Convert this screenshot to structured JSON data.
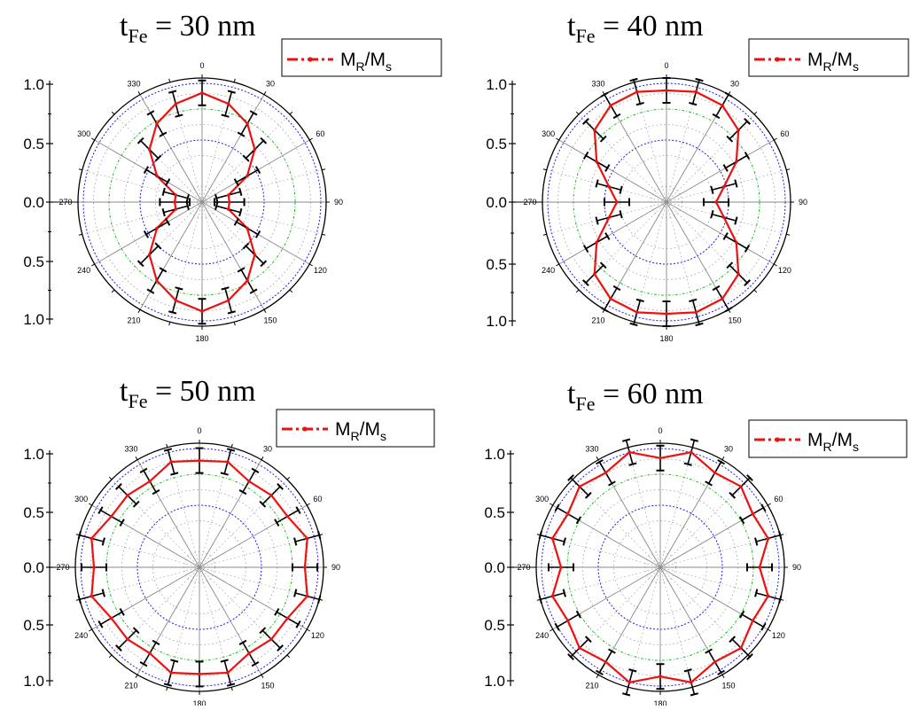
{
  "colors": {
    "series_line": "#ee1111",
    "error_bar": "#000000",
    "grid_major_outer": "#1a1aee",
    "grid_major_mid": "#22bb22",
    "grid_major_inner": "#1a1aee",
    "grid_minor": "#9a9a9a",
    "spoke": "#8a8a8a",
    "frame": "#000000"
  },
  "chart_data": [
    {
      "type": "polar-line",
      "title": {
        "prefix": "t",
        "subscript": "Fe",
        "suffix": " = 30 nm"
      },
      "legend": {
        "main": "M",
        "sub1": "R",
        "slash": "/M",
        "sub2": "s"
      },
      "legend_placement": "top-right",
      "radial_axis": {
        "range": [
          0,
          1.0
        ],
        "tick_labels": [
          "1.0",
          "0.5",
          "0.0",
          "0.5",
          "1.0"
        ]
      },
      "angle_labels": [
        "0",
        "30",
        "60",
        "90",
        "120",
        "150",
        "180",
        "210",
        "240",
        "270",
        "300",
        "330"
      ],
      "grid": true,
      "series": [
        {
          "angles": [
            0,
            15,
            30,
            45,
            60,
            75,
            90,
            105,
            120,
            135,
            150,
            165,
            180,
            195,
            210,
            225,
            240,
            255,
            270,
            285,
            300,
            315,
            330,
            345
          ],
          "values": [
            0.88,
            0.82,
            0.73,
            0.6,
            0.42,
            0.22,
            0.22,
            0.22,
            0.42,
            0.6,
            0.73,
            0.82,
            0.88,
            0.82,
            0.73,
            0.6,
            0.42,
            0.22,
            0.22,
            0.22,
            0.42,
            0.6,
            0.73,
            0.82
          ],
          "errors": [
            0.1,
            0.1,
            0.1,
            0.1,
            0.1,
            0.1,
            0.12,
            0.1,
            0.1,
            0.1,
            0.1,
            0.1,
            0.1,
            0.1,
            0.1,
            0.1,
            0.1,
            0.1,
            0.12,
            0.1,
            0.1,
            0.1,
            0.1,
            0.1
          ]
        }
      ]
    },
    {
      "type": "polar-line",
      "title": {
        "prefix": "t",
        "subscript": "Fe",
        "suffix": " = 40 nm"
      },
      "legend": {
        "main": "M",
        "sub1": "R",
        "slash": "/M",
        "sub2": "s"
      },
      "legend_placement": "top-right",
      "radial_axis": {
        "range": [
          0,
          1.0
        ],
        "tick_labels": [
          "1.0",
          "0.5",
          "0.0",
          "0.5",
          "1.0"
        ]
      },
      "angle_labels": [
        "0",
        "30",
        "60",
        "90",
        "120",
        "150",
        "180",
        "210",
        "240",
        "270",
        "300",
        "330"
      ],
      "grid": true,
      "series": [
        {
          "angles": [
            0,
            15,
            30,
            45,
            60,
            75,
            90,
            105,
            120,
            135,
            150,
            165,
            180,
            195,
            210,
            225,
            240,
            255,
            270,
            285,
            300,
            315,
            330,
            345
          ],
          "values": [
            0.9,
            0.92,
            0.9,
            0.82,
            0.65,
            0.48,
            0.4,
            0.48,
            0.65,
            0.82,
            0.9,
            0.92,
            0.9,
            0.92,
            0.9,
            0.82,
            0.65,
            0.48,
            0.4,
            0.48,
            0.65,
            0.82,
            0.9,
            0.92
          ],
          "errors": [
            0.1,
            0.1,
            0.1,
            0.1,
            0.1,
            0.1,
            0.1,
            0.1,
            0.1,
            0.1,
            0.1,
            0.1,
            0.1,
            0.1,
            0.1,
            0.1,
            0.1,
            0.1,
            0.1,
            0.1,
            0.1,
            0.1,
            0.1,
            0.1
          ]
        }
      ]
    },
    {
      "type": "polar-line",
      "title": {
        "prefix": "t",
        "subscript": "Fe",
        "suffix": " = 50 nm"
      },
      "legend": {
        "main": "M",
        "sub1": "R",
        "slash": "/M",
        "sub2": "s"
      },
      "legend_placement": "top-right",
      "radial_axis": {
        "range": [
          0,
          1.0
        ],
        "tick_labels": [
          "1.0",
          "0.5",
          "0.0",
          "0.5",
          "1.0"
        ]
      },
      "angle_labels": [
        "0",
        "30",
        "60",
        "90",
        "120",
        "150",
        "180",
        "210",
        "240",
        "270",
        "300",
        "330"
      ],
      "grid": true,
      "series": [
        {
          "angles": [
            0,
            15,
            30,
            45,
            60,
            75,
            90,
            105,
            120,
            135,
            150,
            165,
            180,
            195,
            210,
            225,
            240,
            255,
            270,
            285,
            300,
            315,
            330,
            345
          ],
          "values": [
            0.86,
            0.88,
            0.8,
            0.82,
            0.82,
            0.9,
            0.85,
            0.9,
            0.82,
            0.82,
            0.8,
            0.88,
            0.86,
            0.88,
            0.8,
            0.82,
            0.82,
            0.9,
            0.85,
            0.9,
            0.82,
            0.82,
            0.8,
            0.88
          ],
          "errors": [
            0.1,
            0.1,
            0.1,
            0.1,
            0.1,
            0.1,
            0.1,
            0.1,
            0.1,
            0.1,
            0.1,
            0.1,
            0.1,
            0.1,
            0.1,
            0.1,
            0.1,
            0.1,
            0.1,
            0.1,
            0.1,
            0.1,
            0.1,
            0.1
          ]
        }
      ]
    },
    {
      "type": "polar-line",
      "title": {
        "prefix": "t",
        "subscript": "Fe",
        "suffix": " = 60 nm"
      },
      "legend": {
        "main": "M",
        "sub1": "R",
        "slash": "/M",
        "sub2": "s"
      },
      "legend_placement": "top-right",
      "radial_axis": {
        "range": [
          0,
          1.0
        ],
        "tick_labels": [
          "1.0",
          "0.5",
          "0.0",
          "0.5",
          "1.0"
        ]
      },
      "angle_labels": [
        "0",
        "30",
        "60",
        "90",
        "120",
        "150",
        "180",
        "210",
        "240",
        "270",
        "300",
        "330"
      ],
      "grid": true,
      "series": [
        {
          "angles": [
            0,
            15,
            30,
            45,
            60,
            75,
            90,
            105,
            120,
            135,
            150,
            165,
            180,
            195,
            210,
            225,
            240,
            255,
            270,
            285,
            300,
            315,
            330,
            345
          ],
          "values": [
            0.88,
            0.96,
            0.88,
            0.92,
            0.86,
            0.9,
            0.8,
            0.9,
            0.86,
            0.92,
            0.88,
            0.96,
            0.88,
            0.96,
            0.88,
            0.92,
            0.86,
            0.9,
            0.8,
            0.9,
            0.86,
            0.92,
            0.88,
            0.96
          ],
          "errors": [
            0.1,
            0.1,
            0.1,
            0.1,
            0.1,
            0.1,
            0.1,
            0.1,
            0.1,
            0.1,
            0.1,
            0.1,
            0.1,
            0.1,
            0.1,
            0.1,
            0.1,
            0.1,
            0.1,
            0.1,
            0.1,
            0.1,
            0.1,
            0.1
          ]
        }
      ]
    }
  ]
}
